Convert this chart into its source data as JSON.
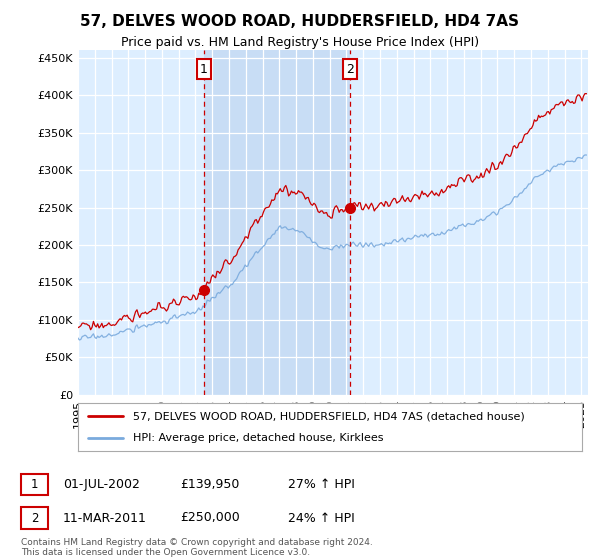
{
  "title": "57, DELVES WOOD ROAD, HUDDERSFIELD, HD4 7AS",
  "subtitle": "Price paid vs. HM Land Registry's House Price Index (HPI)",
  "legend_line1": "57, DELVES WOOD ROAD, HUDDERSFIELD, HD4 7AS (detached house)",
  "legend_line2": "HPI: Average price, detached house, Kirklees",
  "sale1_label": "1",
  "sale1_date": "01-JUL-2002",
  "sale1_price": "£139,950",
  "sale1_hpi": "27% ↑ HPI",
  "sale1_year": 2002.5,
  "sale1_value": 139950,
  "sale2_label": "2",
  "sale2_date": "11-MAR-2011",
  "sale2_price": "£250,000",
  "sale2_hpi": "24% ↑ HPI",
  "sale2_year": 2011.2,
  "sale2_value": 250000,
  "hpi_color": "#7aaadd",
  "price_color": "#cc0000",
  "marker_color": "#cc0000",
  "vline_color": "#cc0000",
  "box_color": "#cc0000",
  "grid_color": "#cccccc",
  "bg_color": "#ddeeff",
  "highlight_color": "#c8ddf5",
  "ylim": [
    0,
    460000
  ],
  "yticks": [
    0,
    50000,
    100000,
    150000,
    200000,
    250000,
    300000,
    350000,
    400000,
    450000
  ],
  "footer": "Contains HM Land Registry data © Crown copyright and database right 2024.\nThis data is licensed under the Open Government Licence v3.0."
}
